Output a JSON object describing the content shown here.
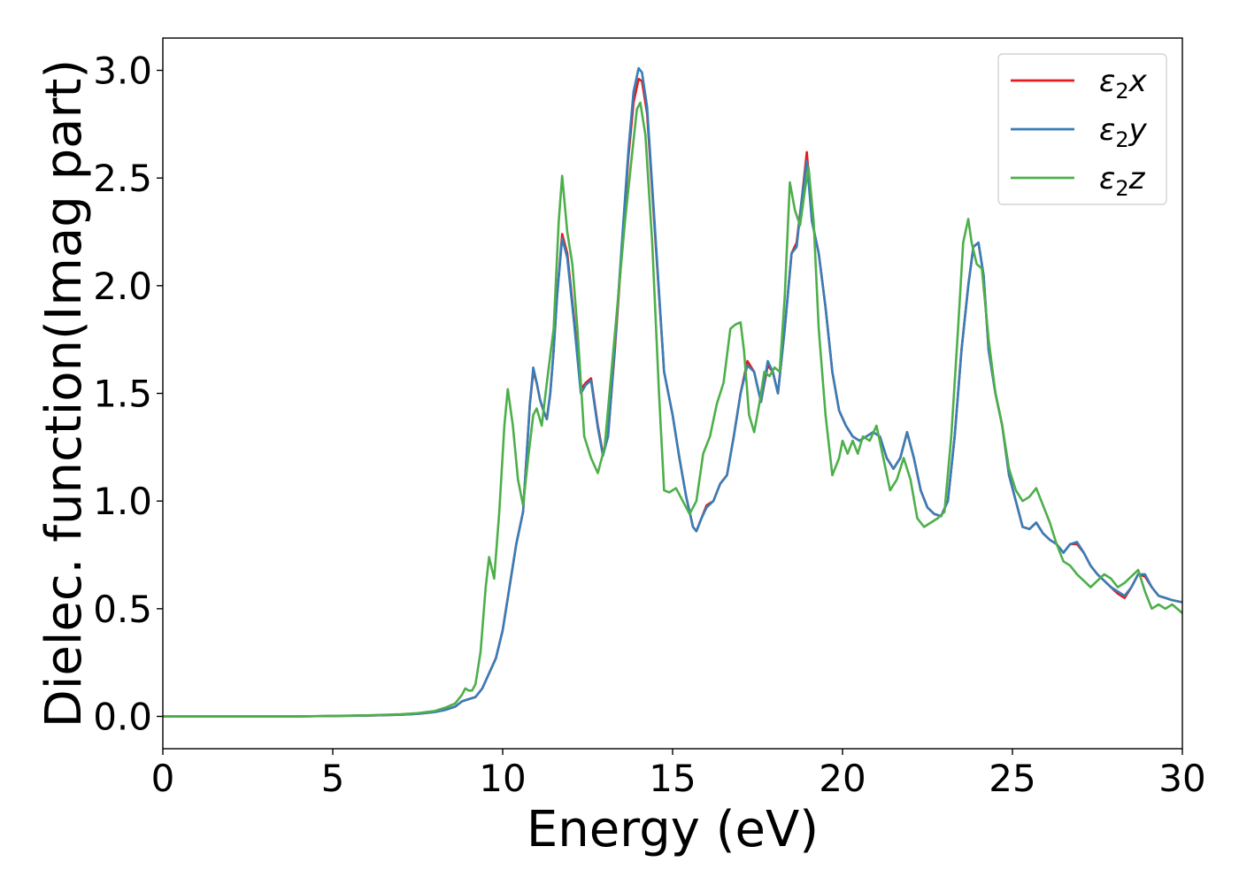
{
  "chart_data": {
    "type": "line",
    "title": "",
    "xlabel": "Energy (eV)",
    "ylabel": "Dielec. function(Imag part)",
    "xlim": [
      0,
      30
    ],
    "ylim": [
      -0.15,
      3.15
    ],
    "xticks": [
      0,
      5,
      10,
      15,
      20,
      25,
      30
    ],
    "xtick_labels": [
      "0",
      "5",
      "10",
      "15",
      "20",
      "25",
      "30"
    ],
    "yticks": [
      0.0,
      0.5,
      1.0,
      1.5,
      2.0,
      2.5,
      3.0
    ],
    "ytick_labels": [
      "0.0",
      "0.5",
      "1.0",
      "1.5",
      "2.0",
      "2.5",
      "3.0"
    ],
    "grid": false,
    "legend_position": "top-right",
    "series": [
      {
        "name": "ε2x",
        "name_base": "ε",
        "name_sub": "2",
        "name_suffix": "x",
        "color": "#e41a1c",
        "x": [
          0,
          2,
          4,
          6,
          7,
          7.5,
          8,
          8.3,
          8.6,
          8.8,
          9.0,
          9.2,
          9.4,
          9.6,
          9.8,
          10.0,
          10.2,
          10.4,
          10.6,
          10.7,
          10.8,
          10.9,
          11.0,
          11.1,
          11.2,
          11.3,
          11.4,
          11.5,
          11.6,
          11.75,
          11.9,
          12.1,
          12.3,
          12.45,
          12.6,
          12.8,
          12.95,
          13.1,
          13.3,
          13.5,
          13.7,
          13.85,
          14.0,
          14.1,
          14.25,
          14.5,
          14.75,
          15.0,
          15.2,
          15.4,
          15.6,
          15.7,
          15.85,
          16.0,
          16.2,
          16.4,
          16.6,
          16.8,
          17.0,
          17.2,
          17.4,
          17.6,
          17.8,
          17.95,
          18.1,
          18.3,
          18.5,
          18.65,
          18.8,
          18.95,
          19.1,
          19.3,
          19.5,
          19.7,
          19.9,
          20.1,
          20.3,
          20.5,
          20.7,
          20.9,
          21.1,
          21.3,
          21.5,
          21.7,
          21.9,
          22.1,
          22.3,
          22.5,
          22.7,
          22.9,
          23.1,
          23.3,
          23.5,
          23.7,
          23.85,
          24.0,
          24.15,
          24.3,
          24.5,
          24.7,
          24.9,
          25.1,
          25.3,
          25.5,
          25.7,
          25.9,
          26.1,
          26.3,
          26.5,
          26.7,
          26.9,
          27.1,
          27.3,
          27.5,
          27.7,
          27.9,
          28.1,
          28.3,
          28.5,
          28.7,
          28.9,
          29.1,
          29.3,
          29.5,
          29.7,
          30.0
        ],
        "values": [
          0.0,
          0.0,
          0.0,
          0.004,
          0.008,
          0.012,
          0.02,
          0.03,
          0.045,
          0.07,
          0.08,
          0.09,
          0.13,
          0.2,
          0.27,
          0.4,
          0.6,
          0.8,
          0.95,
          1.2,
          1.45,
          1.6,
          1.55,
          1.47,
          1.42,
          1.38,
          1.5,
          1.7,
          1.95,
          2.24,
          2.15,
          1.85,
          1.52,
          1.55,
          1.57,
          1.35,
          1.22,
          1.3,
          1.7,
          2.15,
          2.6,
          2.85,
          2.96,
          2.95,
          2.8,
          2.2,
          1.6,
          1.4,
          1.2,
          1.02,
          0.88,
          0.86,
          0.92,
          0.98,
          1.0,
          1.08,
          1.12,
          1.3,
          1.5,
          1.65,
          1.6,
          1.46,
          1.63,
          1.6,
          1.5,
          1.8,
          2.15,
          2.2,
          2.4,
          2.62,
          2.3,
          2.15,
          1.9,
          1.6,
          1.42,
          1.35,
          1.3,
          1.28,
          1.3,
          1.32,
          1.3,
          1.2,
          1.15,
          1.2,
          1.32,
          1.2,
          1.05,
          0.97,
          0.94,
          0.93,
          1.0,
          1.3,
          1.7,
          2.0,
          2.18,
          2.2,
          2.05,
          1.7,
          1.5,
          1.35,
          1.12,
          1.0,
          0.88,
          0.87,
          0.9,
          0.85,
          0.82,
          0.8,
          0.76,
          0.8,
          0.8,
          0.76,
          0.7,
          0.66,
          0.63,
          0.6,
          0.57,
          0.55,
          0.6,
          0.66,
          0.65,
          0.6,
          0.56,
          0.55,
          0.54,
          0.53
        ]
      },
      {
        "name": "ε2y",
        "name_base": "ε",
        "name_sub": "2",
        "name_suffix": "y",
        "color": "#377eb8",
        "x": [
          0,
          2,
          4,
          6,
          7,
          7.5,
          8,
          8.3,
          8.6,
          8.8,
          9.0,
          9.2,
          9.4,
          9.6,
          9.8,
          10.0,
          10.2,
          10.4,
          10.6,
          10.7,
          10.8,
          10.9,
          11.0,
          11.1,
          11.2,
          11.3,
          11.4,
          11.5,
          11.6,
          11.75,
          11.9,
          12.1,
          12.3,
          12.45,
          12.6,
          12.8,
          12.95,
          13.1,
          13.3,
          13.5,
          13.7,
          13.85,
          14.0,
          14.1,
          14.25,
          14.5,
          14.75,
          15.0,
          15.2,
          15.4,
          15.6,
          15.7,
          15.85,
          16.0,
          16.2,
          16.4,
          16.6,
          16.8,
          17.0,
          17.2,
          17.4,
          17.6,
          17.8,
          17.95,
          18.1,
          18.3,
          18.5,
          18.65,
          18.8,
          18.95,
          19.1,
          19.3,
          19.5,
          19.7,
          19.9,
          20.1,
          20.3,
          20.5,
          20.7,
          20.9,
          21.1,
          21.3,
          21.5,
          21.7,
          21.9,
          22.1,
          22.3,
          22.5,
          22.7,
          22.9,
          23.1,
          23.3,
          23.5,
          23.7,
          23.85,
          24.0,
          24.15,
          24.3,
          24.5,
          24.7,
          24.9,
          25.1,
          25.3,
          25.5,
          25.7,
          25.9,
          26.1,
          26.3,
          26.5,
          26.7,
          26.9,
          27.1,
          27.3,
          27.5,
          27.7,
          27.9,
          28.1,
          28.3,
          28.5,
          28.7,
          28.9,
          29.1,
          29.3,
          29.5,
          29.7,
          30.0
        ],
        "values": [
          0.0,
          0.0,
          0.0,
          0.004,
          0.008,
          0.012,
          0.02,
          0.03,
          0.045,
          0.07,
          0.08,
          0.09,
          0.13,
          0.2,
          0.27,
          0.4,
          0.6,
          0.8,
          0.95,
          1.2,
          1.45,
          1.62,
          1.55,
          1.47,
          1.42,
          1.38,
          1.5,
          1.7,
          1.95,
          2.22,
          2.13,
          1.83,
          1.5,
          1.54,
          1.56,
          1.34,
          1.21,
          1.3,
          1.72,
          2.18,
          2.63,
          2.9,
          3.01,
          2.99,
          2.83,
          2.22,
          1.6,
          1.4,
          1.2,
          1.02,
          0.88,
          0.86,
          0.92,
          0.97,
          1.0,
          1.08,
          1.12,
          1.3,
          1.5,
          1.63,
          1.6,
          1.46,
          1.65,
          1.6,
          1.5,
          1.8,
          2.15,
          2.18,
          2.4,
          2.58,
          2.3,
          2.15,
          1.9,
          1.6,
          1.42,
          1.35,
          1.3,
          1.28,
          1.3,
          1.32,
          1.3,
          1.2,
          1.15,
          1.2,
          1.32,
          1.2,
          1.05,
          0.97,
          0.94,
          0.93,
          1.0,
          1.3,
          1.7,
          2.0,
          2.18,
          2.2,
          2.05,
          1.7,
          1.5,
          1.35,
          1.12,
          1.0,
          0.88,
          0.87,
          0.9,
          0.85,
          0.82,
          0.8,
          0.76,
          0.8,
          0.81,
          0.76,
          0.7,
          0.66,
          0.63,
          0.6,
          0.58,
          0.56,
          0.6,
          0.66,
          0.66,
          0.6,
          0.56,
          0.55,
          0.54,
          0.53
        ]
      },
      {
        "name": "ε2z",
        "name_base": "ε",
        "name_sub": "2",
        "name_suffix": "z",
        "color": "#4daf4a",
        "x": [
          0,
          2,
          4,
          6,
          7,
          7.5,
          8,
          8.3,
          8.6,
          8.8,
          8.9,
          9.0,
          9.1,
          9.2,
          9.35,
          9.5,
          9.6,
          9.75,
          9.9,
          10.05,
          10.15,
          10.3,
          10.45,
          10.6,
          10.75,
          10.9,
          11.0,
          11.15,
          11.3,
          11.5,
          11.65,
          11.75,
          11.9,
          12.05,
          12.2,
          12.4,
          12.6,
          12.8,
          13.0,
          13.2,
          13.4,
          13.6,
          13.8,
          13.95,
          14.05,
          14.2,
          14.4,
          14.6,
          14.75,
          14.9,
          15.0,
          15.1,
          15.3,
          15.5,
          15.7,
          15.9,
          16.1,
          16.3,
          16.5,
          16.7,
          16.85,
          17.0,
          17.1,
          17.25,
          17.4,
          17.55,
          17.7,
          17.85,
          18.0,
          18.15,
          18.3,
          18.45,
          18.6,
          18.75,
          18.9,
          19.0,
          19.15,
          19.3,
          19.5,
          19.7,
          19.9,
          20.0,
          20.15,
          20.3,
          20.45,
          20.6,
          20.8,
          21.0,
          21.2,
          21.4,
          21.6,
          21.8,
          22.0,
          22.2,
          22.4,
          22.6,
          22.8,
          23.0,
          23.2,
          23.4,
          23.55,
          23.7,
          23.8,
          23.95,
          24.1,
          24.3,
          24.5,
          24.7,
          24.9,
          25.1,
          25.3,
          25.5,
          25.7,
          25.9,
          26.1,
          26.3,
          26.5,
          26.7,
          26.9,
          27.1,
          27.3,
          27.5,
          27.7,
          27.9,
          28.1,
          28.3,
          28.5,
          28.7,
          28.9,
          29.1,
          29.3,
          29.5,
          29.7,
          30.0
        ],
        "values": [
          0.0,
          0.0,
          0.0,
          0.005,
          0.01,
          0.015,
          0.025,
          0.04,
          0.06,
          0.1,
          0.13,
          0.12,
          0.12,
          0.15,
          0.3,
          0.6,
          0.74,
          0.64,
          0.95,
          1.35,
          1.52,
          1.35,
          1.1,
          0.98,
          1.2,
          1.4,
          1.43,
          1.35,
          1.55,
          1.8,
          2.3,
          2.51,
          2.25,
          2.1,
          1.8,
          1.3,
          1.2,
          1.13,
          1.25,
          1.6,
          1.95,
          2.3,
          2.6,
          2.82,
          2.85,
          2.7,
          2.2,
          1.5,
          1.05,
          1.04,
          1.05,
          1.06,
          1.0,
          0.94,
          1.0,
          1.22,
          1.3,
          1.45,
          1.55,
          1.8,
          1.82,
          1.83,
          1.7,
          1.4,
          1.32,
          1.45,
          1.6,
          1.58,
          1.62,
          1.6,
          1.95,
          2.48,
          2.35,
          2.28,
          2.45,
          2.55,
          2.3,
          1.8,
          1.4,
          1.12,
          1.2,
          1.28,
          1.22,
          1.28,
          1.22,
          1.3,
          1.28,
          1.35,
          1.2,
          1.05,
          1.1,
          1.2,
          1.1,
          0.92,
          0.88,
          0.9,
          0.92,
          0.95,
          1.3,
          1.8,
          2.2,
          2.31,
          2.2,
          2.1,
          2.08,
          1.75,
          1.5,
          1.35,
          1.15,
          1.05,
          1.0,
          1.02,
          1.06,
          0.98,
          0.9,
          0.8,
          0.72,
          0.7,
          0.66,
          0.63,
          0.6,
          0.63,
          0.66,
          0.64,
          0.6,
          0.62,
          0.65,
          0.68,
          0.58,
          0.5,
          0.52,
          0.5,
          0.52,
          0.48
        ]
      }
    ]
  }
}
